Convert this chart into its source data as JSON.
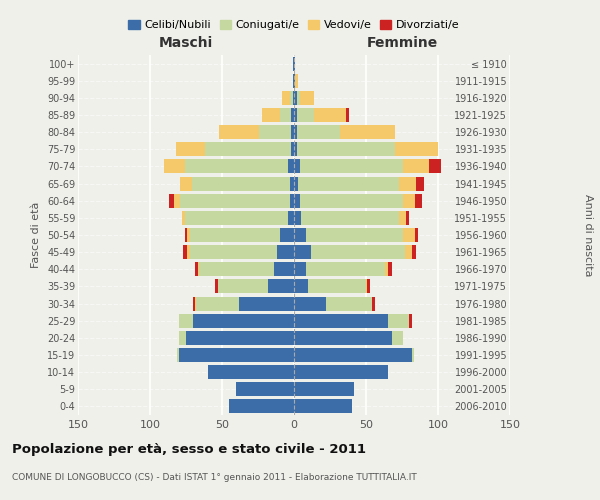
{
  "age_groups": [
    "0-4",
    "5-9",
    "10-14",
    "15-19",
    "20-24",
    "25-29",
    "30-34",
    "35-39",
    "40-44",
    "45-49",
    "50-54",
    "55-59",
    "60-64",
    "65-69",
    "70-74",
    "75-79",
    "80-84",
    "85-89",
    "90-94",
    "95-99",
    "100+"
  ],
  "birth_years": [
    "2006-2010",
    "2001-2005",
    "1996-2000",
    "1991-1995",
    "1986-1990",
    "1981-1985",
    "1976-1980",
    "1971-1975",
    "1966-1970",
    "1961-1965",
    "1956-1960",
    "1951-1955",
    "1946-1950",
    "1941-1945",
    "1936-1940",
    "1931-1935",
    "1926-1930",
    "1921-1925",
    "1916-1920",
    "1911-1915",
    "≤ 1910"
  ],
  "colors": {
    "celibi": "#3d6da8",
    "coniugati": "#c5d8a0",
    "vedovi": "#f5c96a",
    "divorziati": "#cc2222"
  },
  "maschi": {
    "celibi": [
      45,
      40,
      60,
      80,
      75,
      70,
      38,
      18,
      14,
      12,
      10,
      4,
      3,
      3,
      4,
      2,
      2,
      2,
      1,
      1,
      1
    ],
    "coniugati": [
      0,
      0,
      0,
      1,
      5,
      10,
      30,
      35,
      52,
      60,
      62,
      72,
      76,
      68,
      72,
      60,
      22,
      8,
      2,
      0,
      0
    ],
    "vedovi": [
      0,
      0,
      0,
      0,
      0,
      0,
      1,
      0,
      1,
      2,
      2,
      2,
      4,
      8,
      14,
      20,
      28,
      12,
      5,
      0,
      0
    ],
    "divorziati": [
      0,
      0,
      0,
      0,
      0,
      0,
      1,
      2,
      2,
      3,
      2,
      0,
      4,
      0,
      0,
      0,
      0,
      0,
      0,
      0,
      0
    ]
  },
  "femmine": {
    "celibi": [
      40,
      42,
      65,
      82,
      68,
      65,
      22,
      10,
      8,
      12,
      8,
      5,
      4,
      3,
      4,
      2,
      2,
      2,
      2,
      1,
      1
    ],
    "coniugati": [
      0,
      0,
      0,
      1,
      8,
      15,
      32,
      40,
      55,
      65,
      68,
      68,
      72,
      70,
      72,
      68,
      30,
      12,
      2,
      0,
      0
    ],
    "vedovi": [
      0,
      0,
      0,
      0,
      0,
      0,
      0,
      1,
      2,
      5,
      8,
      5,
      8,
      12,
      18,
      30,
      38,
      22,
      10,
      2,
      0
    ],
    "divorziati": [
      0,
      0,
      0,
      0,
      0,
      2,
      2,
      2,
      3,
      3,
      2,
      2,
      5,
      5,
      8,
      0,
      0,
      2,
      0,
      0,
      0
    ]
  },
  "title": "Popolazione per età, sesso e stato civile - 2011",
  "subtitle": "COMUNE DI LONGOBUCCO (CS) - Dati ISTAT 1° gennaio 2011 - Elaborazione TUTTITALIA.IT",
  "xlabel_maschi": "Maschi",
  "xlabel_femmine": "Femmine",
  "ylabel": "Fasce di età",
  "ylabel_right": "Anni di nascita",
  "xlim": 150,
  "legend_labels": [
    "Celibi/Nubili",
    "Coniugati/e",
    "Vedovi/e",
    "Divorziati/e"
  ],
  "background_color": "#f0f0eb"
}
